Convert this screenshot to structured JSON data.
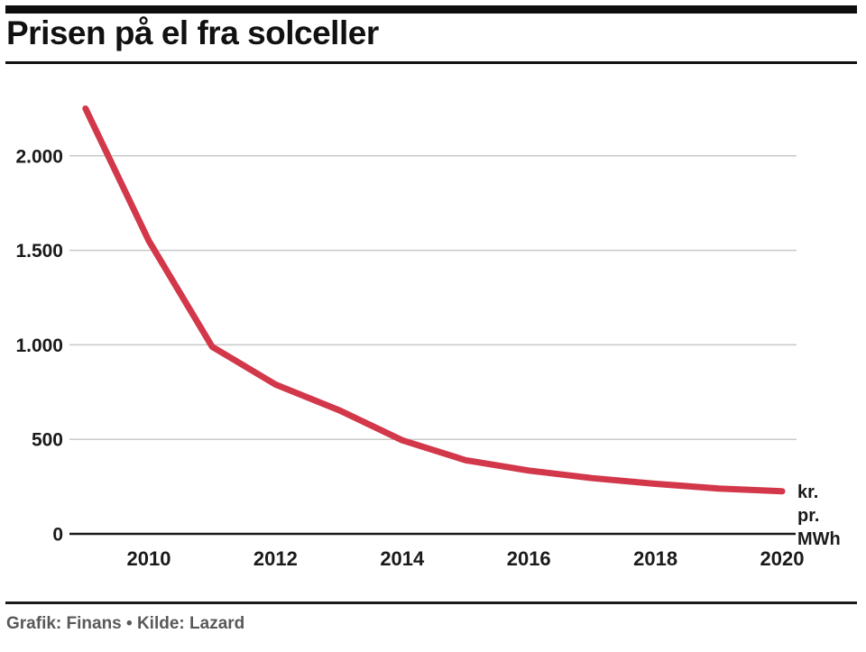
{
  "header": {
    "title": "Prisen på el fra solceller"
  },
  "chart_data": {
    "type": "line",
    "title": "Prisen på el fra solceller",
    "x": [
      2009,
      2010,
      2011,
      2012,
      2013,
      2014,
      2015,
      2016,
      2017,
      2018,
      2019,
      2020
    ],
    "series": [
      {
        "name": "Pris på el fra solceller",
        "values": [
          2250,
          1550,
          990,
          790,
          655,
          495,
          390,
          335,
          295,
          265,
          240,
          225
        ]
      }
    ],
    "xlabel": "",
    "ylabel": "kr. pr. MWh",
    "unit_label_lines": [
      "kr.",
      "pr.",
      "MWh"
    ],
    "x_ticks": [
      {
        "v": 2010,
        "label": "2010"
      },
      {
        "v": 2012,
        "label": "2012"
      },
      {
        "v": 2014,
        "label": "2014"
      },
      {
        "v": 2016,
        "label": "2016"
      },
      {
        "v": 2018,
        "label": "2018"
      },
      {
        "v": 2020,
        "label": "2020"
      }
    ],
    "y_ticks": [
      {
        "v": 0,
        "label": "0"
      },
      {
        "v": 500,
        "label": "500"
      },
      {
        "v": 1000,
        "label": "1.000"
      },
      {
        "v": 1500,
        "label": "1.500"
      },
      {
        "v": 2000,
        "label": "2.000"
      }
    ],
    "xlim": [
      2009,
      2020
    ],
    "ylim": [
      0,
      2350
    ],
    "grid": true,
    "legend": false,
    "colors": {
      "line": "#d2374a",
      "grid": "#c9c9c9",
      "axis": "#1a1a1a",
      "text": "#1a1a1a"
    }
  },
  "footer": {
    "credit": "Grafik: Finans • Kilde: Lazard"
  }
}
